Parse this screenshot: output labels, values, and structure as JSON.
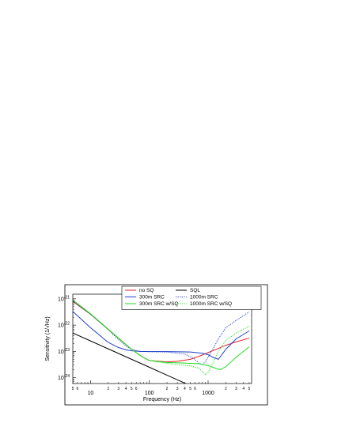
{
  "chart_data": {
    "type": "line",
    "title": "",
    "xlabel": "Frequency (Hz)",
    "ylabel": "Sensitivity (1/√Hz)",
    "xscale": "log",
    "yscale": "log",
    "xlim": [
      5,
      5500
    ],
    "ylim": [
      6e-25,
      1.5e-21
    ],
    "grid": false,
    "legend_position": "top-right",
    "x_major_ticks": [
      {
        "value": 10,
        "label": "10"
      },
      {
        "value": 100,
        "label": "100"
      },
      {
        "value": 1000,
        "label": "1000"
      }
    ],
    "x_minor_ticks": [
      {
        "value": 5,
        "label": "5"
      },
      {
        "value": 6,
        "label": "6"
      },
      {
        "value": 20,
        "label": "2"
      },
      {
        "value": 30,
        "label": "3"
      },
      {
        "value": 40,
        "label": "4"
      },
      {
        "value": 50,
        "label": "5"
      },
      {
        "value": 60,
        "label": "6"
      },
      {
        "value": 200,
        "label": "2"
      },
      {
        "value": 300,
        "label": "3"
      },
      {
        "value": 400,
        "label": "4"
      },
      {
        "value": 500,
        "label": "5"
      },
      {
        "value": 600,
        "label": "6"
      },
      {
        "value": 2000,
        "label": "2"
      },
      {
        "value": 3000,
        "label": "3"
      },
      {
        "value": 4000,
        "label": "4"
      },
      {
        "value": 5000,
        "label": "5"
      }
    ],
    "y_ticks": [
      {
        "value": 1e-21,
        "base": "10",
        "exp": "-21"
      },
      {
        "value": 1e-22,
        "base": "10",
        "exp": "-22"
      },
      {
        "value": 1e-23,
        "base": "10",
        "exp": "-23"
      },
      {
        "value": 1e-24,
        "base": "10",
        "exp": "-24"
      }
    ],
    "series": [
      {
        "name": "no SQ",
        "color": "#e8202a",
        "style": "solid",
        "x": [
          5,
          10,
          20,
          50,
          70,
          100,
          200,
          300,
          500,
          700,
          1000,
          1500,
          2000,
          3000,
          5000
        ],
        "y": [
          8e-22,
          2.6e-22,
          6.8e-23,
          1.2e-23,
          7e-24,
          4.5e-24,
          4e-24,
          4.2e-24,
          5e-24,
          6.5e-24,
          9e-24,
          1.3e-23,
          1.7e-23,
          2.3e-23,
          3.2e-23
        ]
      },
      {
        "name": "SQL",
        "color": "#000000",
        "style": "solid",
        "x": [
          5,
          10,
          20,
          50,
          100,
          200,
          300,
          500
        ],
        "y": [
          5e-23,
          2.5e-23,
          1.25e-23,
          5e-24,
          2.5e-24,
          1.25e-24,
          8.3e-25,
          5e-25
        ]
      },
      {
        "name": "300m SRC",
        "color": "#1f3fc8",
        "style": "solid",
        "x": [
          5,
          10,
          20,
          30,
          40,
          50,
          70,
          100,
          200,
          500,
          800,
          1000,
          1200,
          1500,
          2000,
          3000,
          5000
        ],
        "y": [
          3.3e-22,
          8e-23,
          2.2e-23,
          1.4e-23,
          1.15e-23,
          1.05e-23,
          1e-23,
          9.8e-24,
          9.8e-24,
          9.5e-24,
          8.5e-24,
          7.5e-24,
          6e-24,
          5e-24,
          1.2e-23,
          3e-23,
          6e-23
        ]
      },
      {
        "name": "1000m SRC",
        "color": "#1f3fc8",
        "style": "dotted",
        "x": [
          5,
          10,
          20,
          30,
          40,
          50,
          70,
          100,
          200,
          400,
          600,
          700,
          800,
          900,
          1000,
          1200,
          1500,
          2000,
          3000,
          5000
        ],
        "y": [
          8e-22,
          2.6e-22,
          6.8e-23,
          2.8e-23,
          1.6e-23,
          1.2e-23,
          1e-23,
          9.8e-24,
          9.5e-24,
          8e-24,
          5e-24,
          3.5e-24,
          3.2e-24,
          4e-24,
          6e-24,
          1.2e-23,
          3e-23,
          8e-23,
          1.5e-22,
          3.2e-22
        ]
      },
      {
        "name": "300m SRC w/SQ",
        "color": "#22dd22",
        "style": "solid",
        "x": [
          5,
          10,
          20,
          50,
          70,
          100,
          200,
          400,
          700,
          1000,
          1200,
          1400,
          1600,
          2000,
          3000,
          5000
        ],
        "y": [
          9e-22,
          2.7e-22,
          7e-23,
          1.2e-23,
          7e-24,
          4.5e-24,
          3.8e-24,
          3.6e-24,
          3.4e-24,
          2.9e-24,
          2.5e-24,
          2.2e-24,
          2e-24,
          2.6e-24,
          6e-24,
          1.5e-23
        ]
      },
      {
        "name": "1000m SRC w/SQ",
        "color": "#22dd22",
        "style": "dotted",
        "x": [
          5,
          10,
          20,
          50,
          70,
          100,
          200,
          300,
          500,
          700,
          800,
          900,
          1000,
          1200,
          1500,
          2000,
          3000,
          5000
        ],
        "y": [
          9e-22,
          2.7e-22,
          7e-23,
          1.2e-23,
          7e-24,
          4.5e-24,
          3.5e-24,
          3.2e-24,
          2.8e-24,
          2.3e-24,
          1.7e-24,
          1.3e-24,
          1.6e-24,
          3.5e-24,
          1e-23,
          2.6e-23,
          5e-23,
          9e-23
        ]
      }
    ],
    "legend": {
      "rows": [
        [
          "no SQ",
          "SQL"
        ],
        [
          "300m SRC",
          "1000m SRC"
        ],
        [
          "300m SRC w/SQ",
          "1000m SRC w/SQ"
        ]
      ]
    }
  }
}
